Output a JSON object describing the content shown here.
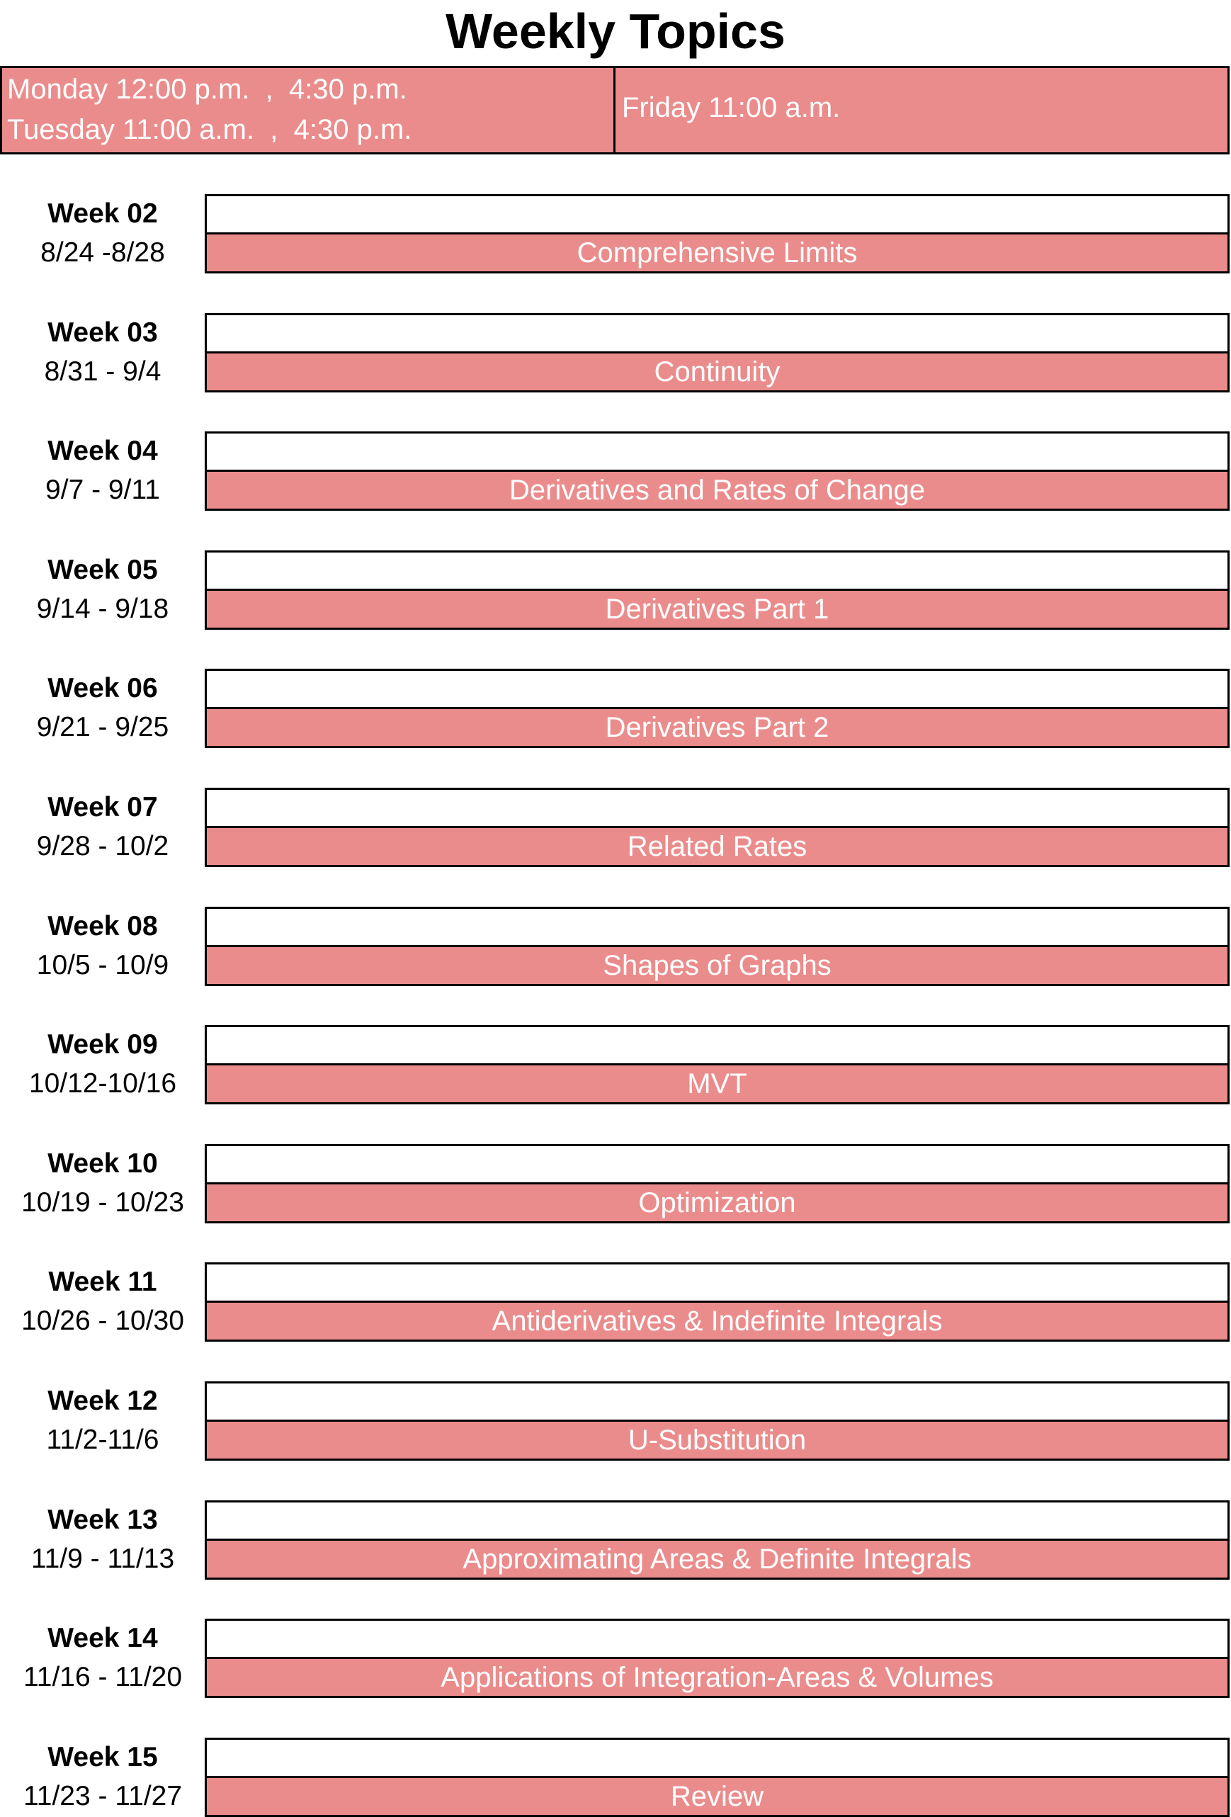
{
  "header": {
    "title": "Weekly Topics",
    "schedule_left": [
      "Monday 12:00 p.m.  ,  4:30 p.m.",
      "Tuesday 11:00 a.m.  ,  4:30 p.m."
    ],
    "schedule_right": "Friday 11:00 a.m."
  },
  "weeks": [
    {
      "week": "Week 02",
      "dates": "8/24 -8/28",
      "topic": "Comprehensive Limits"
    },
    {
      "week": "Week 03",
      "dates": "8/31 - 9/4",
      "topic": "Continuity"
    },
    {
      "week": "Week 04",
      "dates": "9/7 - 9/11",
      "topic": "Derivatives and Rates of Change"
    },
    {
      "week": "Week 05",
      "dates": "9/14 - 9/18",
      "topic": "Derivatives Part 1"
    },
    {
      "week": "Week 06",
      "dates": "9/21 - 9/25",
      "topic": "Derivatives Part 2"
    },
    {
      "week": "Week 07",
      "dates": "9/28 - 10/2",
      "topic": "Related Rates"
    },
    {
      "week": "Week 08",
      "dates": "10/5 - 10/9",
      "topic": "Shapes of Graphs"
    },
    {
      "week": "Week 09",
      "dates": "10/12-10/16",
      "topic": "MVT"
    },
    {
      "week": "Week 10",
      "dates": "10/19 - 10/23",
      "topic": "Optimization"
    },
    {
      "week": "Week 11",
      "dates": "10/26 - 10/30",
      "topic": "Antiderivatives & Indefinite Integrals"
    },
    {
      "week": "Week 12",
      "dates": "11/2-11/6",
      "topic": "U-Substitution"
    },
    {
      "week": "Week 13",
      "dates": "11/9 - 11/13",
      "topic": "Approximating Areas & Definite Integrals"
    },
    {
      "week": "Week 14",
      "dates": "11/16 - 11/20",
      "topic": "Applications of Integration-Areas & Volumes"
    },
    {
      "week": "Week 15",
      "dates": "11/23 - 11/27",
      "topic": "Review"
    }
  ]
}
